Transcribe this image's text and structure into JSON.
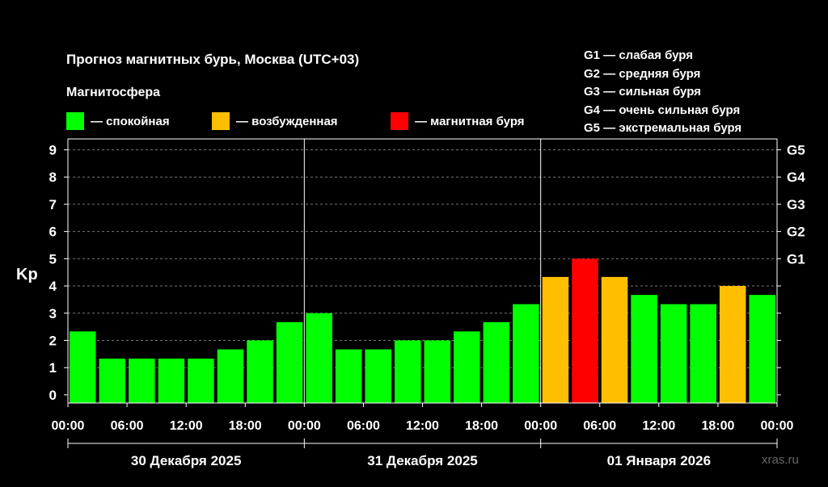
{
  "title": "Прогноз магнитных бурь, Москва (UTC+03)",
  "subtitle": "Магнитосфера",
  "legend": [
    {
      "label": "— спокойная",
      "color": "#00ff00"
    },
    {
      "label": "— возбужденная",
      "color": "#ffbf00"
    },
    {
      "label": "— магнитная буря",
      "color": "#ff0000"
    }
  ],
  "g_legend": [
    "G1 — слабая буря",
    "G2 — средняя буря",
    "G3 — сильная буря",
    "G4 — очень сильная буря",
    "G5 — экстремальная буря"
  ],
  "watermark": "xras.ru",
  "chart_data": {
    "type": "bar",
    "ylabel": "Kp",
    "ylim": [
      0,
      9
    ],
    "yticks": [
      "0",
      "1",
      "2",
      "3",
      "4",
      "5",
      "6",
      "7",
      "8",
      "9"
    ],
    "right_ticks": [
      {
        "kp": 5,
        "label": "G1"
      },
      {
        "kp": 6,
        "label": "G2"
      },
      {
        "kp": 7,
        "label": "G3"
      },
      {
        "kp": 8,
        "label": "G4"
      },
      {
        "kp": 9,
        "label": "G5"
      }
    ],
    "xtick_labels": [
      "00:00",
      "06:00",
      "12:00",
      "18:00",
      "00:00",
      "06:00",
      "12:00",
      "18:00",
      "00:00",
      "06:00",
      "12:00",
      "18:00",
      "00:00"
    ],
    "days": [
      "30 Декабря 2025",
      "31 Декабря 2025",
      "01 Января 2026"
    ],
    "grid": true,
    "values": [
      2.33,
      1.33,
      1.33,
      1.33,
      1.33,
      1.67,
      2.0,
      2.67,
      3.0,
      1.67,
      1.67,
      2.0,
      2.0,
      2.33,
      2.67,
      3.33,
      4.33,
      5.0,
      4.33,
      3.67,
      3.33,
      3.33,
      4.0,
      3.67
    ],
    "colors": [
      "#00ff00",
      "#00ff00",
      "#00ff00",
      "#00ff00",
      "#00ff00",
      "#00ff00",
      "#00ff00",
      "#00ff00",
      "#00ff00",
      "#00ff00",
      "#00ff00",
      "#00ff00",
      "#00ff00",
      "#00ff00",
      "#00ff00",
      "#00ff00",
      "#ffbf00",
      "#ff0000",
      "#ffbf00",
      "#00ff00",
      "#00ff00",
      "#00ff00",
      "#ffbf00",
      "#00ff00"
    ]
  }
}
